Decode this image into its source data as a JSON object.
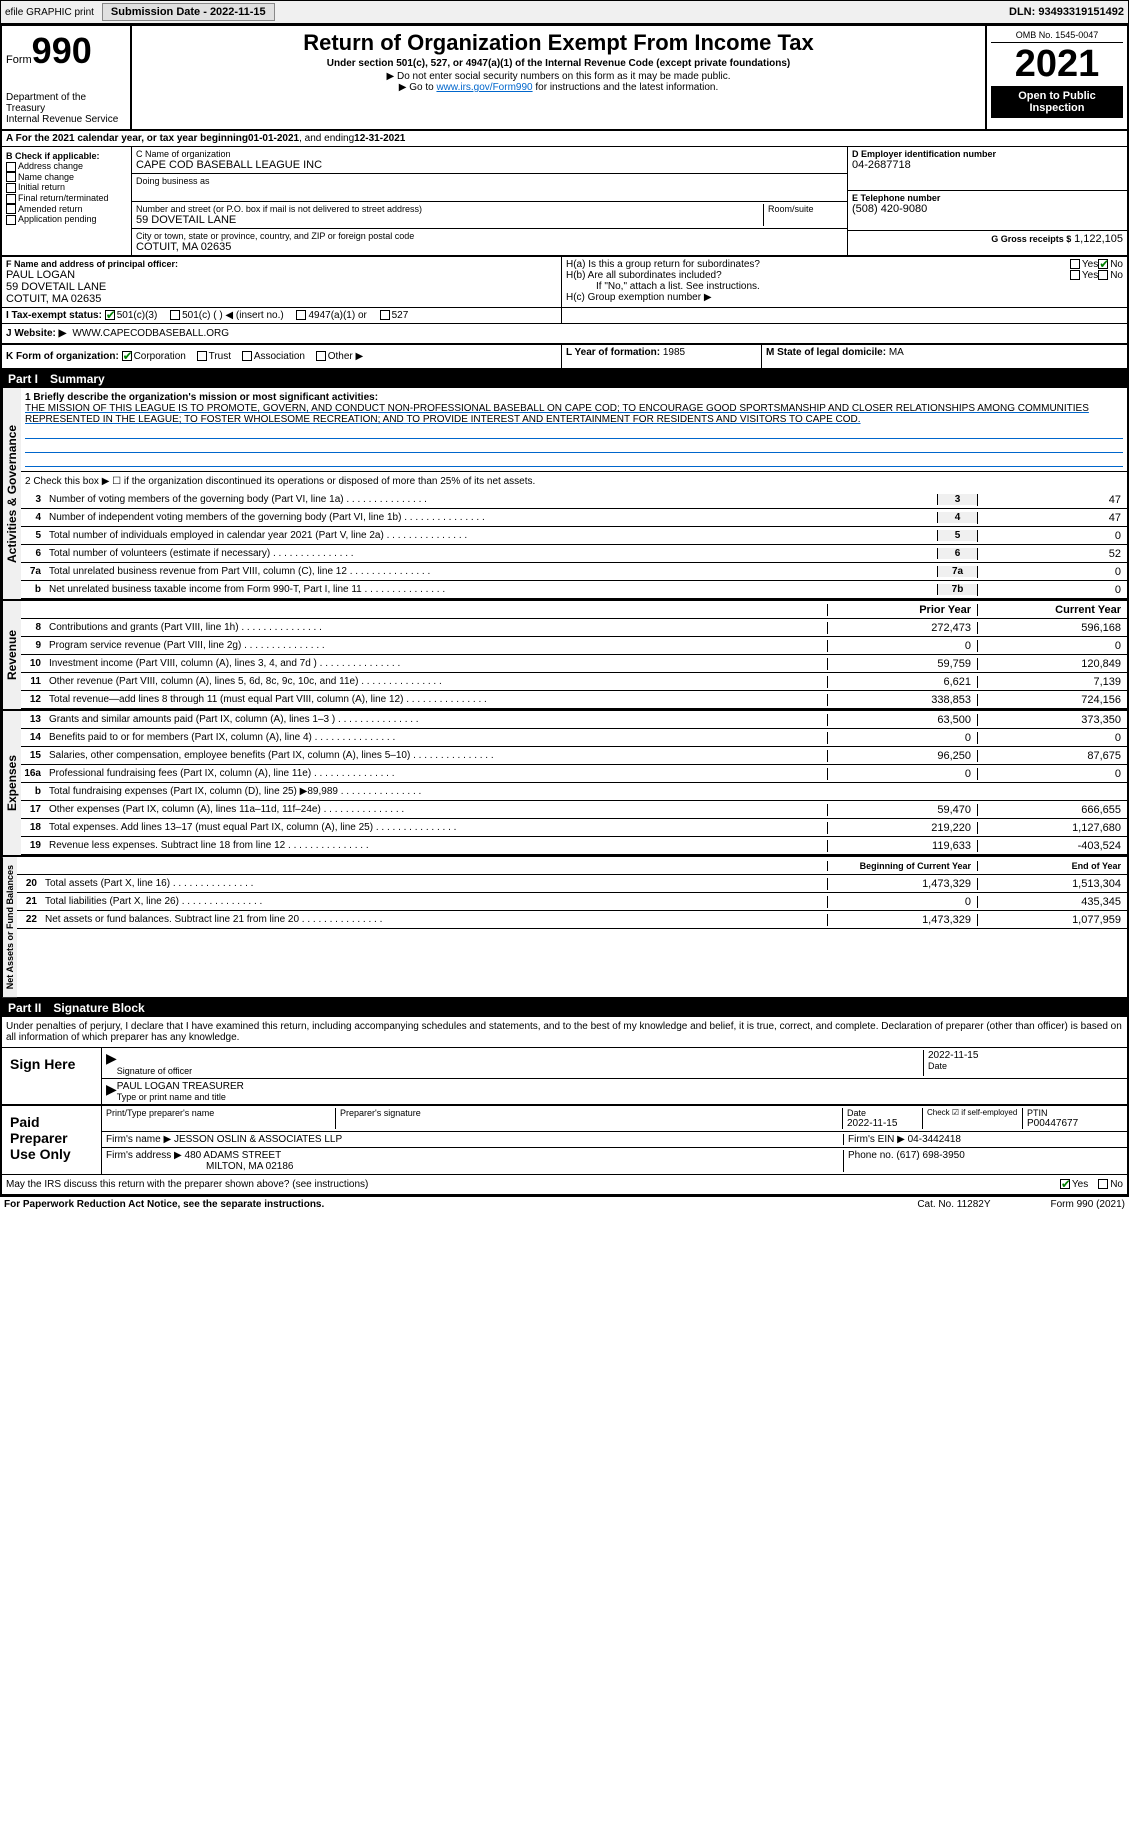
{
  "header": {
    "efile": "efile GRAPHIC print",
    "submission_label": "Submission Date - 2022-11-15",
    "dln": "DLN: 93493319151492"
  },
  "form_header": {
    "form_label": "Form",
    "form_number": "990",
    "dept": "Department of the Treasury",
    "irs": "Internal Revenue Service",
    "title": "Return of Organization Exempt From Income Tax",
    "subtitle": "Under section 501(c), 527, or 4947(a)(1) of the Internal Revenue Code (except private foundations)",
    "note1": "▶ Do not enter social security numbers on this form as it may be made public.",
    "note2_pre": "▶ Go to ",
    "note2_link": "www.irs.gov/Form990",
    "note2_post": " for instructions and the latest information.",
    "omb": "OMB No. 1545-0047",
    "year": "2021",
    "open": "Open to Public Inspection"
  },
  "period": {
    "label_a": "A For the 2021 calendar year, or tax year beginning ",
    "begin": "01-01-2021",
    "mid": " , and ending ",
    "end": "12-31-2021"
  },
  "box_b": {
    "title": "B Check if applicable:",
    "items": [
      "Address change",
      "Name change",
      "Initial return",
      "Final return/terminated",
      "Amended return",
      "Application pending"
    ]
  },
  "box_c": {
    "label": "C Name of organization",
    "name": "CAPE COD BASEBALL LEAGUE INC",
    "dba_label": "Doing business as",
    "dba": "",
    "addr_label": "Number and street (or P.O. box if mail is not delivered to street address)",
    "room_label": "Room/suite",
    "addr": "59 DOVETAIL LANE",
    "city_label": "City or town, state or province, country, and ZIP or foreign postal code",
    "city": "COTUIT, MA  02635"
  },
  "box_d": {
    "label": "D Employer identification number",
    "val": "04-2687718"
  },
  "box_e": {
    "label": "E Telephone number",
    "val": "(508) 420-9080"
  },
  "box_g": {
    "label": "G Gross receipts $",
    "val": "1,122,105"
  },
  "box_f": {
    "label": "F Name and address of principal officer:",
    "name": "PAUL LOGAN",
    "addr1": "59 DOVETAIL LANE",
    "addr2": "COTUIT, MA  02635"
  },
  "box_h": {
    "ha": "H(a)  Is this a group return for subordinates?",
    "hb": "H(b)  Are all subordinates included?",
    "hb_note": "If \"No,\" attach a list. See instructions.",
    "hc": "H(c)  Group exemption number ▶",
    "yes": "Yes",
    "no": "No"
  },
  "box_i": {
    "label": "I  Tax-exempt status:",
    "opt1": "501(c)(3)",
    "opt2": "501(c) (   ) ◀ (insert no.)",
    "opt3": "4947(a)(1) or",
    "opt4": "527"
  },
  "box_j": {
    "label": "J  Website: ▶",
    "val": "WWW.CAPECODBASEBALL.ORG"
  },
  "box_k": {
    "label": "K Form of organization:",
    "corp": "Corporation",
    "trust": "Trust",
    "assoc": "Association",
    "other": "Other ▶"
  },
  "box_l": {
    "label": "L Year of formation:",
    "val": "1985"
  },
  "box_m": {
    "label": "M State of legal domicile:",
    "val": "MA"
  },
  "part1": {
    "title": "Part I",
    "name": "Summary",
    "line1_label": "1  Briefly describe the organization's mission or most significant activities:",
    "mission": "THE MISSION OF THIS LEAGUE IS TO PROMOTE, GOVERN, AND CONDUCT NON-PROFESSIONAL BASEBALL ON CAPE COD; TO ENCOURAGE GOOD SPORTSMANSHIP AND CLOSER RELATIONSHIPS AMONG COMMUNITIES REPRESENTED IN THE LEAGUE; TO FOSTER WHOLESOME RECREATION; AND TO PROVIDE INTEREST AND ENTERTAINMENT FOR RESIDENTS AND VISITORS TO CAPE COD.",
    "line2": "2   Check this box ▶ ☐ if the organization discontinued its operations or disposed of more than 25% of its net assets.",
    "rows_gov": [
      {
        "n": "3",
        "d": "Number of voting members of the governing body (Part VI, line 1a)",
        "c": "3",
        "v": "47"
      },
      {
        "n": "4",
        "d": "Number of independent voting members of the governing body (Part VI, line 1b)",
        "c": "4",
        "v": "47"
      },
      {
        "n": "5",
        "d": "Total number of individuals employed in calendar year 2021 (Part V, line 2a)",
        "c": "5",
        "v": "0"
      },
      {
        "n": "6",
        "d": "Total number of volunteers (estimate if necessary)",
        "c": "6",
        "v": "52"
      },
      {
        "n": "7a",
        "d": "Total unrelated business revenue from Part VIII, column (C), line 12",
        "c": "7a",
        "v": "0"
      },
      {
        "n": "b",
        "d": "Net unrelated business taxable income from Form 990-T, Part I, line 11",
        "c": "7b",
        "v": "0"
      }
    ],
    "prior": "Prior Year",
    "current": "Current Year",
    "rows_rev": [
      {
        "n": "8",
        "d": "Contributions and grants (Part VIII, line 1h)",
        "p": "272,473",
        "c": "596,168"
      },
      {
        "n": "9",
        "d": "Program service revenue (Part VIII, line 2g)",
        "p": "0",
        "c": "0"
      },
      {
        "n": "10",
        "d": "Investment income (Part VIII, column (A), lines 3, 4, and 7d )",
        "p": "59,759",
        "c": "120,849"
      },
      {
        "n": "11",
        "d": "Other revenue (Part VIII, column (A), lines 5, 6d, 8c, 9c, 10c, and 11e)",
        "p": "6,621",
        "c": "7,139"
      },
      {
        "n": "12",
        "d": "Total revenue—add lines 8 through 11 (must equal Part VIII, column (A), line 12)",
        "p": "338,853",
        "c": "724,156"
      }
    ],
    "rows_exp": [
      {
        "n": "13",
        "d": "Grants and similar amounts paid (Part IX, column (A), lines 1–3 )",
        "p": "63,500",
        "c": "373,350"
      },
      {
        "n": "14",
        "d": "Benefits paid to or for members (Part IX, column (A), line 4)",
        "p": "0",
        "c": "0"
      },
      {
        "n": "15",
        "d": "Salaries, other compensation, employee benefits (Part IX, column (A), lines 5–10)",
        "p": "96,250",
        "c": "87,675"
      },
      {
        "n": "16a",
        "d": "Professional fundraising fees (Part IX, column (A), line 11e)",
        "p": "0",
        "c": "0"
      },
      {
        "n": "b",
        "d": "Total fundraising expenses (Part IX, column (D), line 25) ▶89,989",
        "p": "",
        "c": "",
        "grey": true
      },
      {
        "n": "17",
        "d": "Other expenses (Part IX, column (A), lines 11a–11d, 11f–24e)",
        "p": "59,470",
        "c": "666,655"
      },
      {
        "n": "18",
        "d": "Total expenses. Add lines 13–17 (must equal Part IX, column (A), line 25)",
        "p": "219,220",
        "c": "1,127,680"
      },
      {
        "n": "19",
        "d": "Revenue less expenses. Subtract line 18 from line 12",
        "p": "119,633",
        "c": "-403,524"
      }
    ],
    "begin": "Beginning of Current Year",
    "end": "End of Year",
    "rows_net": [
      {
        "n": "20",
        "d": "Total assets (Part X, line 16)",
        "p": "1,473,329",
        "c": "1,513,304"
      },
      {
        "n": "21",
        "d": "Total liabilities (Part X, line 26)",
        "p": "0",
        "c": "435,345"
      },
      {
        "n": "22",
        "d": "Net assets or fund balances. Subtract line 21 from line 20",
        "p": "1,473,329",
        "c": "1,077,959"
      }
    ]
  },
  "side_labels": {
    "gov": "Activities & Governance",
    "rev": "Revenue",
    "exp": "Expenses",
    "net": "Net Assets or Fund Balances"
  },
  "part2": {
    "title": "Part II",
    "name": "Signature Block",
    "decl": "Under penalties of perjury, I declare that I have examined this return, including accompanying schedules and statements, and to the best of my knowledge and belief, it is true, correct, and complete. Declaration of preparer (other than officer) is based on all information of which preparer has any knowledge.",
    "sign_here": "Sign Here",
    "sig_officer": "Signature of officer",
    "sig_date": "2022-11-15",
    "date_label": "Date",
    "officer_name": "PAUL LOGAN  TREASURER",
    "name_label": "Type or print name and title",
    "paid": "Paid Preparer Use Only",
    "prep_name_label": "Print/Type preparer's name",
    "prep_sig_label": "Preparer's signature",
    "prep_date": "2022-11-15",
    "check_self": "Check ☑ if self-employed",
    "ptin_label": "PTIN",
    "ptin": "P00447677",
    "firm_name_label": "Firm's name    ▶",
    "firm_name": "JESSON OSLIN & ASSOCIATES LLP",
    "firm_ein_label": "Firm's EIN ▶",
    "firm_ein": "04-3442418",
    "firm_addr_label": "Firm's address ▶",
    "firm_addr1": "480 ADAMS STREET",
    "firm_addr2": "MILTON, MA  02186",
    "phone_label": "Phone no.",
    "phone": "(617) 698-3950",
    "discuss": "May the IRS discuss this return with the preparer shown above? (see instructions)",
    "yes": "Yes",
    "no": "No"
  },
  "footer": {
    "left": "For Paperwork Reduction Act Notice, see the separate instructions.",
    "mid": "Cat. No. 11282Y",
    "right": "Form 990 (2021)"
  }
}
